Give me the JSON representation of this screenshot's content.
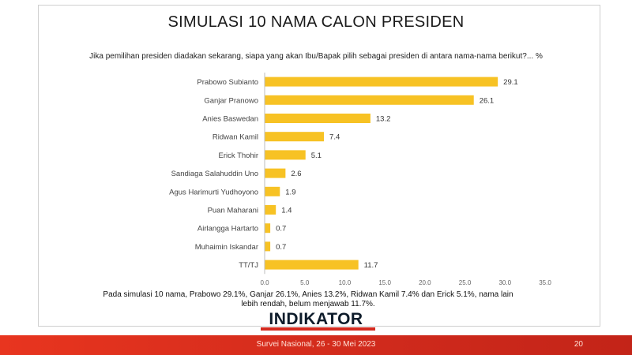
{
  "header": {
    "title": "SIMULASI 10 NAMA CALON PRESIDEN",
    "subtitle": "Jika pemilihan presiden diadakan sekarang, siapa yang akan Ibu/Bapak pilih sebagai presiden di antara nama-nama berikut?... %"
  },
  "chart_data": {
    "type": "bar",
    "orientation": "horizontal",
    "categories": [
      "Prabowo Subianto",
      "Ganjar Pranowo",
      "Anies Baswedan",
      "Ridwan Kamil",
      "Erick Thohir",
      "Sandiaga Salahuddin Uno",
      "Agus Harimurti Yudhoyono",
      "Puan Maharani",
      "Airlangga Hartarto",
      "Muhaimin Iskandar",
      "TT/TJ"
    ],
    "values": [
      29.1,
      26.1,
      13.2,
      7.4,
      5.1,
      2.6,
      1.9,
      1.4,
      0.7,
      0.7,
      11.7
    ],
    "value_labels": [
      "29.1",
      "26.1",
      "13.2",
      "7.4",
      "5.1",
      "2.6",
      "1.9",
      "1.4",
      "0.7",
      "0.7",
      "11.7"
    ],
    "xlim": [
      0,
      35
    ],
    "x_ticks": [
      "0.0",
      "5.0",
      "10.0",
      "15.0",
      "20.0",
      "25.0",
      "30.0",
      "35.0"
    ],
    "bar_color": "#f7c224",
    "grid": false,
    "title": "",
    "xlabel": "",
    "ylabel": ""
  },
  "note": "Pada simulasi 10 nama, Prabowo 29.1%, Ganjar 26.1%, Anies 13.2%, Ridwan Kamil 7.4% dan Erick 5.1%, nama lain lebih rendah, belum menjawab 11.7%.",
  "logo": {
    "text": "INDIKATOR"
  },
  "footer": {
    "survey": "Survei Nasional, 26 - 30 Mei 2023",
    "page": "20"
  },
  "colors": {
    "footer_red": "#d42a1f",
    "bar_yellow": "#f7c224"
  }
}
